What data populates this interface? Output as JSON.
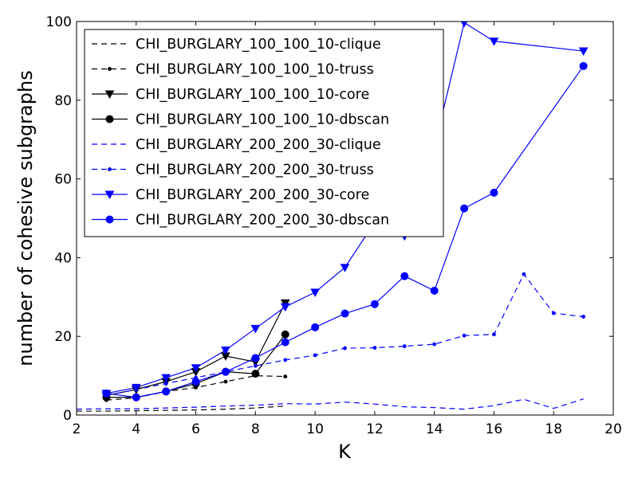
{
  "chart_data": {
    "type": "line",
    "title": "",
    "xlabel": "K",
    "ylabel": "number of cohesive subgraphs",
    "xlim": [
      2,
      20
    ],
    "ylim": [
      0,
      100
    ],
    "xticks": [
      "2",
      "4",
      "6",
      "8",
      "10",
      "12",
      "14",
      "16",
      "18",
      "20"
    ],
    "yticks": [
      "0",
      "20",
      "40",
      "60",
      "80",
      "100"
    ],
    "grid": false,
    "legend_position": "top-left",
    "series": [
      {
        "name": "CHI_BURGLARY_100_100_10-clique",
        "color": "#000000",
        "dash": "dashed",
        "marker": "none",
        "x": [
          2,
          3,
          4,
          5,
          6,
          7,
          8,
          9
        ],
        "y": [
          1.0,
          1.0,
          1.1,
          1.2,
          1.3,
          1.5,
          1.8,
          2.3
        ]
      },
      {
        "name": "CHI_BURGLARY_100_100_10-truss",
        "color": "#000000",
        "dash": "dashed",
        "marker": "dot",
        "x": [
          3,
          4,
          5,
          6,
          7,
          8,
          9
        ],
        "y": [
          3.8,
          4.4,
          6.0,
          7.0,
          8.5,
          10.0,
          9.8
        ]
      },
      {
        "name": "CHI_BURGLARY_100_100_10-core",
        "color": "#000000",
        "dash": "solid",
        "marker": "triangle-down",
        "x": [
          3,
          4,
          5,
          6,
          7,
          8,
          9
        ],
        "y": [
          5.0,
          6.5,
          8.5,
          11.0,
          15.0,
          13.5,
          28.5
        ]
      },
      {
        "name": "CHI_BURGLARY_100_100_10-dbscan",
        "color": "#000000",
        "dash": "solid",
        "marker": "circle",
        "x": [
          3,
          4,
          5,
          6,
          7,
          8,
          9
        ],
        "y": [
          4.5,
          4.5,
          6.0,
          8.0,
          11.0,
          10.5,
          20.5
        ]
      },
      {
        "name": "CHI_BURGLARY_200_200_30-clique",
        "color": "#0000ff",
        "dash": "dashed",
        "marker": "none",
        "x": [
          2,
          3,
          4,
          5,
          6,
          7,
          8,
          9,
          10,
          11,
          12,
          13,
          14,
          15,
          16,
          17,
          18,
          19
        ],
        "y": [
          1.5,
          1.6,
          1.6,
          1.8,
          2.0,
          2.3,
          2.5,
          2.9,
          2.8,
          3.3,
          2.8,
          2.1,
          1.9,
          1.5,
          2.4,
          4.0,
          1.7,
          4.1
        ]
      },
      {
        "name": "CHI_BURGLARY_200_200_30-truss",
        "color": "#0000ff",
        "dash": "dashed",
        "marker": "dot",
        "x": [
          3,
          4,
          5,
          6,
          7,
          8,
          9,
          10,
          11,
          12,
          13,
          14,
          15,
          16,
          17,
          18,
          19
        ],
        "y": [
          5.0,
          6.5,
          8.0,
          9.5,
          11.0,
          12.5,
          14.0,
          15.2,
          17.0,
          17.1,
          17.5,
          18.0,
          20.2,
          20.5,
          35.8,
          25.9,
          25.0
        ]
      },
      {
        "name": "CHI_BURGLARY_200_200_30-core",
        "color": "#0000ff",
        "dash": "solid",
        "marker": "triangle-down",
        "x": [
          3,
          4,
          5,
          6,
          7,
          8,
          9,
          10,
          11,
          12,
          13,
          14,
          15,
          16,
          19
        ],
        "y": [
          5.5,
          7.0,
          9.5,
          12.0,
          16.5,
          22.0,
          27.5,
          31.2,
          37.5,
          49.0,
          45.5,
          68.0,
          99.7,
          95.0,
          92.5
        ]
      },
      {
        "name": "CHI_BURGLARY_200_200_30-dbscan",
        "color": "#0000ff",
        "dash": "solid",
        "marker": "circle",
        "x": [
          3,
          4,
          5,
          6,
          7,
          8,
          9,
          10,
          11,
          12,
          13,
          14,
          15,
          16,
          19
        ],
        "y": [
          5.5,
          4.5,
          6.0,
          8.5,
          11.0,
          14.5,
          18.5,
          22.3,
          25.8,
          28.2,
          35.3,
          31.6,
          52.5,
          56.5,
          88.7
        ]
      }
    ]
  }
}
